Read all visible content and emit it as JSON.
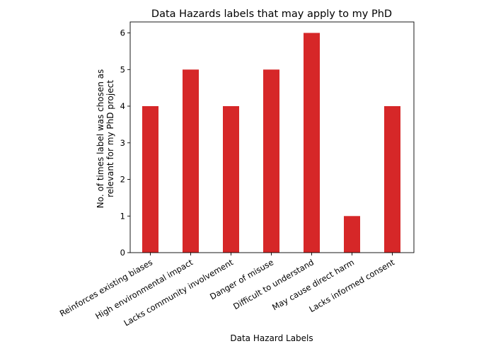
{
  "chart_data": {
    "type": "bar",
    "title": "Data Hazards labels that may apply to my PhD",
    "xlabel": "Data Hazard Labels",
    "ylabel_lines": [
      "No. of times label was chosen as",
      "relevant for my PhD project"
    ],
    "categories": [
      "Reinforces existing biases",
      "High environmental impact",
      "Lacks community involvement",
      "Danger of misuse",
      "Difficult to understand",
      "May cause direct harm",
      "Lacks informed consent"
    ],
    "values": [
      4,
      5,
      4,
      5,
      6,
      1,
      4
    ],
    "ylim": [
      0,
      6.3
    ],
    "yticks": [
      0,
      1,
      2,
      3,
      4,
      5,
      6
    ],
    "bar_color": "#d62728",
    "grid": false,
    "legend": "none"
  }
}
